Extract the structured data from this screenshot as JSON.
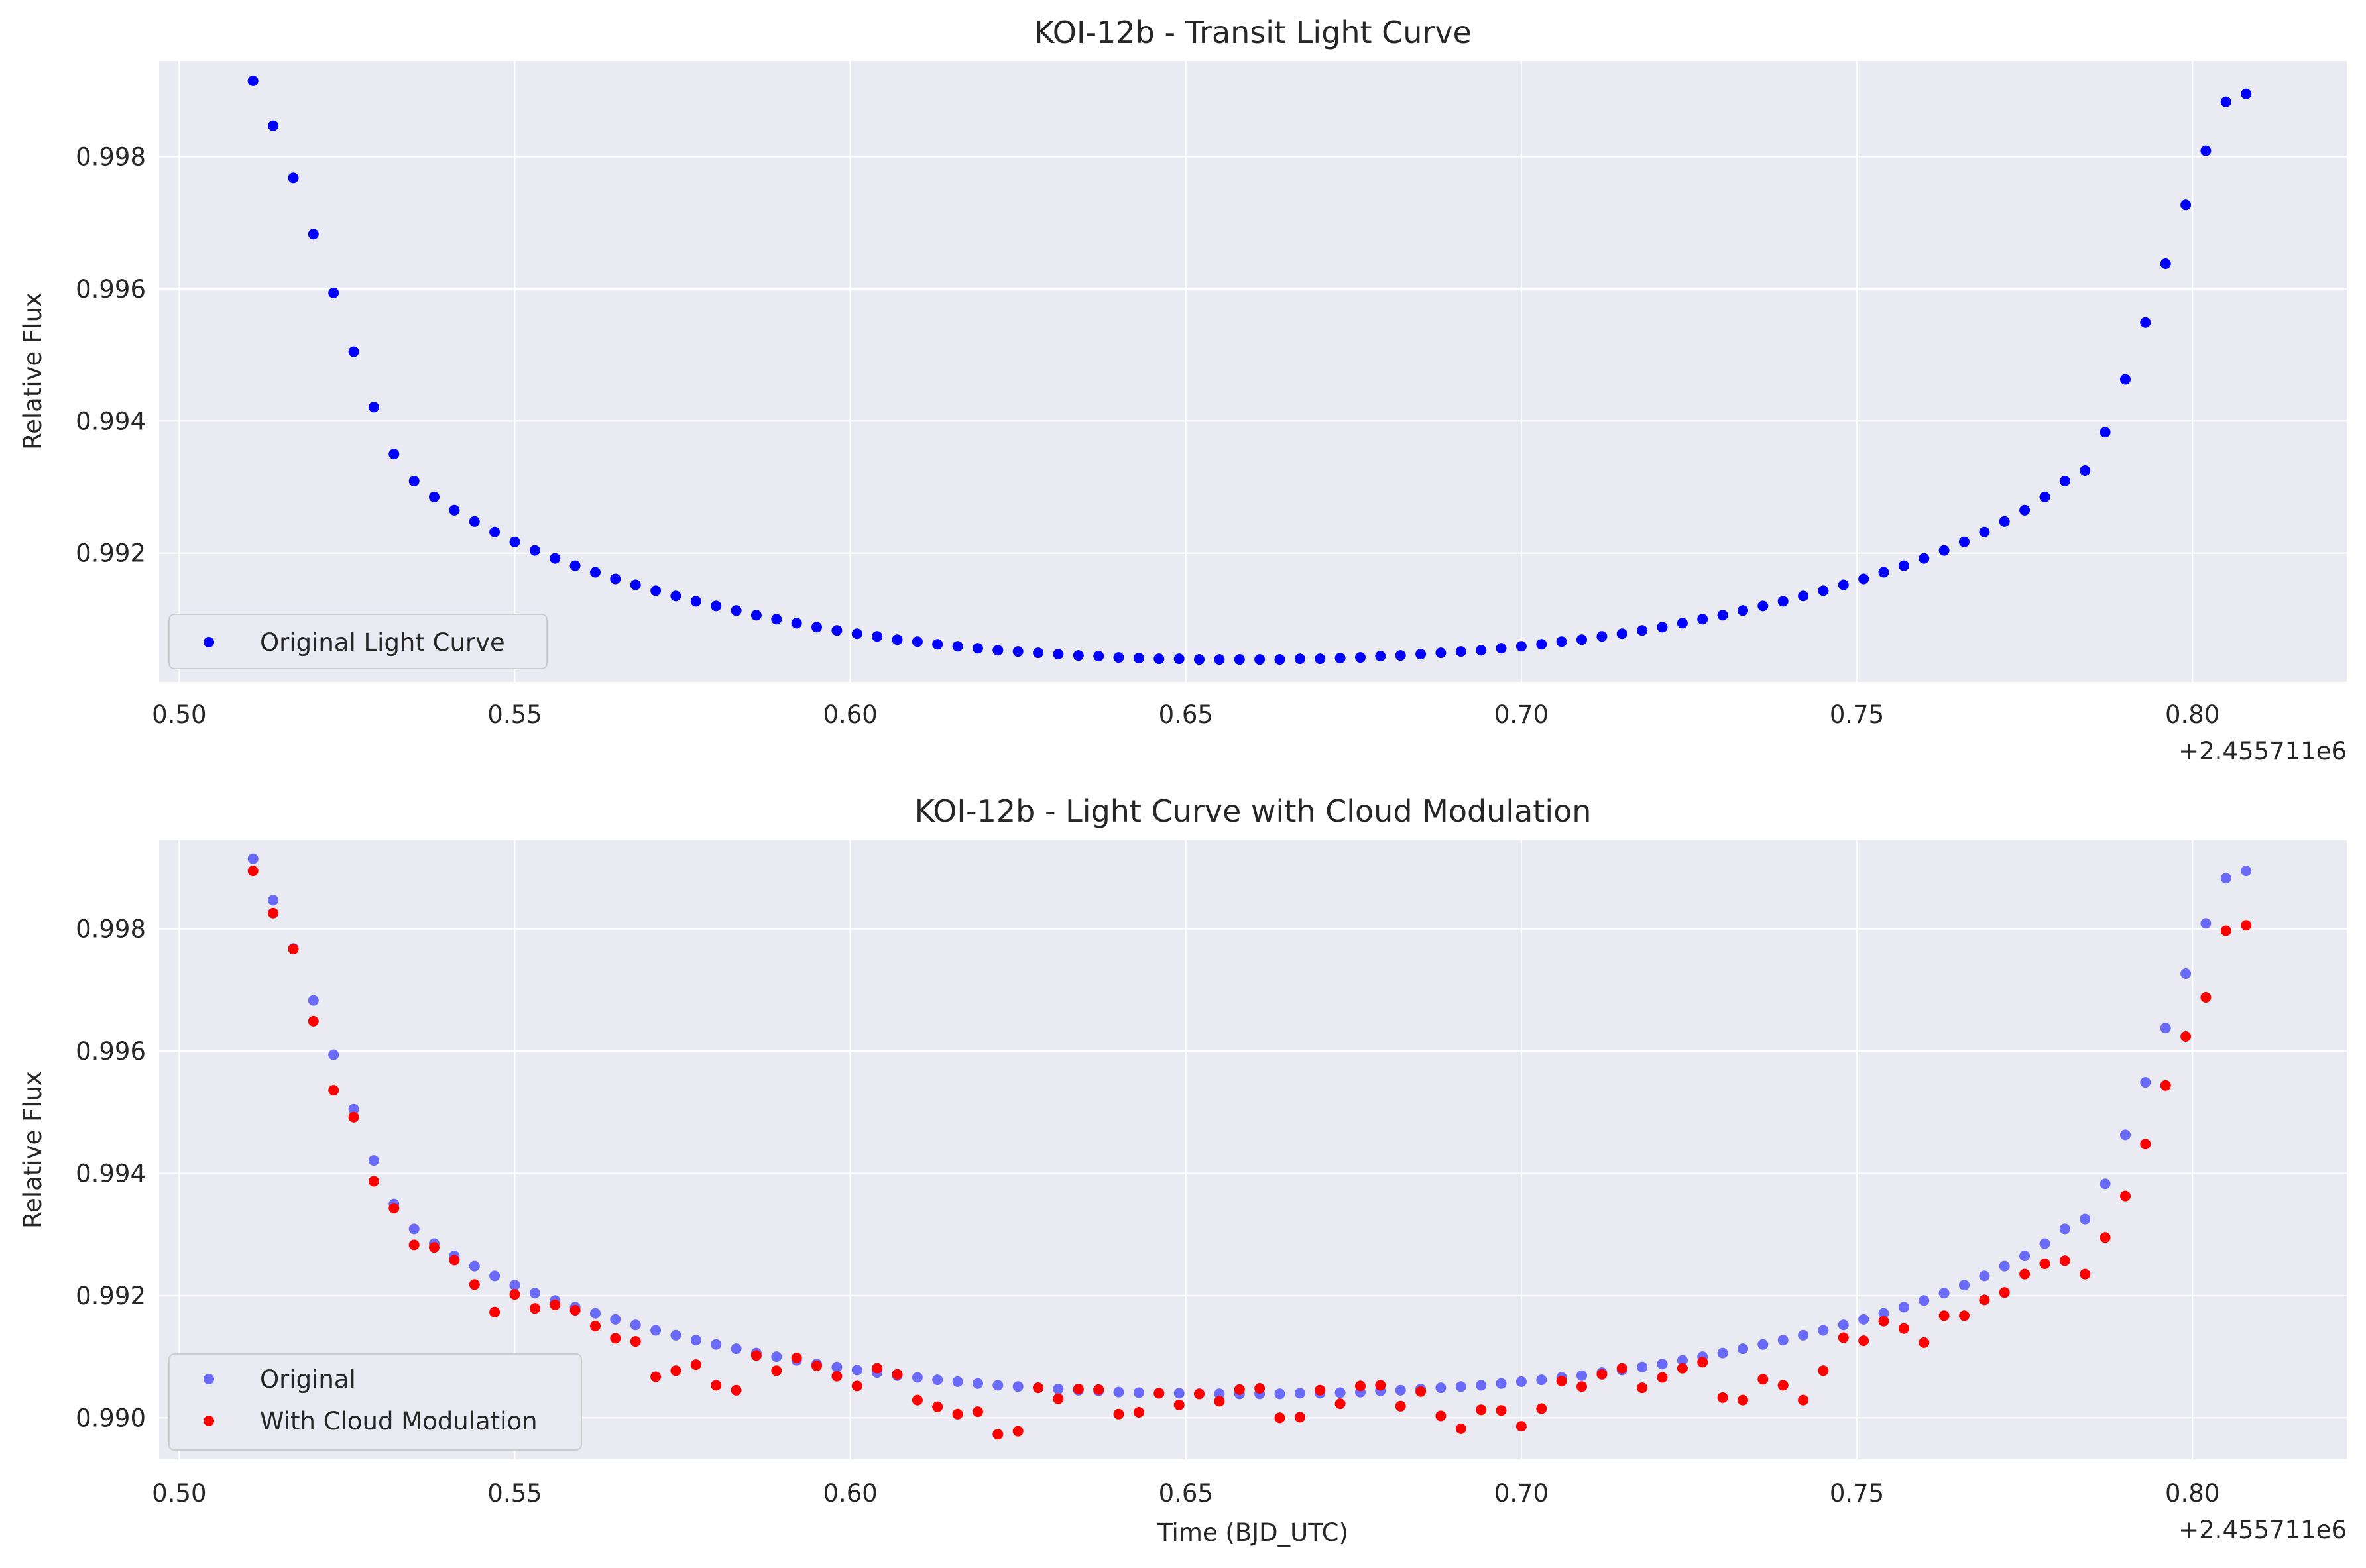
{
  "chart_data": [
    {
      "type": "scatter",
      "title": "KOI-12b - Transit Light Curve",
      "xlabel": "",
      "ylabel": "Relative Flux",
      "x_offset_label": "+2.455711e6",
      "xlim": [
        0.497,
        0.823
      ],
      "ylim": [
        0.99005,
        0.99945
      ],
      "xticks": [
        0.5,
        0.55,
        0.6,
        0.65,
        0.7,
        0.75,
        0.8
      ],
      "xtick_labels": [
        "0.50",
        "0.55",
        "0.60",
        "0.65",
        "0.70",
        "0.75",
        "0.80"
      ],
      "yticks": [
        0.992,
        0.994,
        0.996,
        0.998
      ],
      "ytick_labels": [
        "0.992",
        "0.994",
        "0.996",
        "0.998"
      ],
      "grid": true,
      "legend_position": "lower-left",
      "series": [
        {
          "name": "Original Light Curve",
          "color": "#0000ff",
          "opacity": 1.0,
          "x": [
            0.511,
            0.514,
            0.517,
            0.52,
            0.523,
            0.526,
            0.529,
            0.532,
            0.535,
            0.538,
            0.541,
            0.544,
            0.547,
            0.55,
            0.553,
            0.556,
            0.559,
            0.562,
            0.565,
            0.568,
            0.571,
            0.574,
            0.577,
            0.58,
            0.583,
            0.586,
            0.589,
            0.592,
            0.595,
            0.598,
            0.601,
            0.604,
            0.607,
            0.61,
            0.613,
            0.616,
            0.619,
            0.622,
            0.625,
            0.628,
            0.631,
            0.634,
            0.637,
            0.64,
            0.643,
            0.646,
            0.649,
            0.652,
            0.655,
            0.658,
            0.661,
            0.664,
            0.667,
            0.67,
            0.673,
            0.676,
            0.679,
            0.682,
            0.685,
            0.688,
            0.691,
            0.694,
            0.697,
            0.7,
            0.703,
            0.706,
            0.709,
            0.712,
            0.715,
            0.718,
            0.721,
            0.724,
            0.727,
            0.73,
            0.733,
            0.736,
            0.739,
            0.742,
            0.745,
            0.748,
            0.751,
            0.754,
            0.757,
            0.76,
            0.763,
            0.766,
            0.769,
            0.772,
            0.775,
            0.778,
            0.781,
            0.784,
            0.787,
            0.79,
            0.793,
            0.796,
            0.799,
            0.802,
            0.805,
            0.808
          ],
          "y": [
            0.99915,
            0.99847,
            0.99768,
            0.99683,
            0.99594,
            0.99505,
            0.99421,
            0.9935,
            0.99309,
            0.99285,
            0.99265,
            0.99248,
            0.99232,
            0.99217,
            0.99204,
            0.99192,
            0.99181,
            0.99171,
            0.99161,
            0.99152,
            0.99143,
            0.99135,
            0.99127,
            0.9912,
            0.99113,
            0.99106,
            0.991,
            0.99094,
            0.99088,
            0.99083,
            0.99078,
            0.99074,
            0.99069,
            0.99066,
            0.99062,
            0.99059,
            0.99056,
            0.99053,
            0.99051,
            0.99049,
            0.99047,
            0.99045,
            0.99044,
            0.99042,
            0.99041,
            0.9904,
            0.9904,
            0.99039,
            0.99039,
            0.99039,
            0.99039,
            0.99039,
            0.9904,
            0.9904,
            0.99041,
            0.99042,
            0.99044,
            0.99045,
            0.99047,
            0.99049,
            0.99051,
            0.99053,
            0.99056,
            0.99059,
            0.99062,
            0.99066,
            0.99069,
            0.99074,
            0.99078,
            0.99083,
            0.99088,
            0.99094,
            0.991,
            0.99106,
            0.99113,
            0.9912,
            0.99127,
            0.99135,
            0.99143,
            0.99152,
            0.99161,
            0.99171,
            0.99181,
            0.99192,
            0.99204,
            0.99217,
            0.99232,
            0.99248,
            0.99265,
            0.99285,
            0.99309,
            0.99325,
            0.99383,
            0.99463,
            0.99549,
            0.99638,
            0.99727,
            0.99809,
            0.99883,
            0.99895
          ]
        }
      ]
    },
    {
      "type": "scatter",
      "title": "KOI-12b - Light Curve with Cloud Modulation",
      "xlabel": "Time (BJD_UTC)",
      "ylabel": "Relative Flux",
      "x_offset_label": "+2.455711e6",
      "xlim": [
        0.497,
        0.823
      ],
      "ylim": [
        0.98932,
        0.99945
      ],
      "xticks": [
        0.5,
        0.55,
        0.6,
        0.65,
        0.7,
        0.75,
        0.8
      ],
      "xtick_labels": [
        "0.50",
        "0.55",
        "0.60",
        "0.65",
        "0.70",
        "0.75",
        "0.80"
      ],
      "yticks": [
        0.99,
        0.992,
        0.994,
        0.996,
        0.998
      ],
      "ytick_labels": [
        "0.990",
        "0.992",
        "0.994",
        "0.996",
        "0.998"
      ],
      "grid": true,
      "legend_position": "lower-left",
      "series": [
        {
          "name": "Original",
          "color": "#0000ff",
          "opacity": 0.55,
          "x": [
            0.511,
            0.514,
            0.517,
            0.52,
            0.523,
            0.526,
            0.529,
            0.532,
            0.535,
            0.538,
            0.541,
            0.544,
            0.547,
            0.55,
            0.553,
            0.556,
            0.559,
            0.562,
            0.565,
            0.568,
            0.571,
            0.574,
            0.577,
            0.58,
            0.583,
            0.586,
            0.589,
            0.592,
            0.595,
            0.598,
            0.601,
            0.604,
            0.607,
            0.61,
            0.613,
            0.616,
            0.619,
            0.622,
            0.625,
            0.628,
            0.631,
            0.634,
            0.637,
            0.64,
            0.643,
            0.646,
            0.649,
            0.652,
            0.655,
            0.658,
            0.661,
            0.664,
            0.667,
            0.67,
            0.673,
            0.676,
            0.679,
            0.682,
            0.685,
            0.688,
            0.691,
            0.694,
            0.697,
            0.7,
            0.703,
            0.706,
            0.709,
            0.712,
            0.715,
            0.718,
            0.721,
            0.724,
            0.727,
            0.73,
            0.733,
            0.736,
            0.739,
            0.742,
            0.745,
            0.748,
            0.751,
            0.754,
            0.757,
            0.76,
            0.763,
            0.766,
            0.769,
            0.772,
            0.775,
            0.778,
            0.781,
            0.784,
            0.787,
            0.79,
            0.793,
            0.796,
            0.799,
            0.802,
            0.805,
            0.808
          ],
          "y": [
            0.99915,
            0.99847,
            0.99768,
            0.99683,
            0.99594,
            0.99505,
            0.99421,
            0.9935,
            0.99309,
            0.99285,
            0.99265,
            0.99248,
            0.99232,
            0.99217,
            0.99204,
            0.99192,
            0.99181,
            0.99171,
            0.99161,
            0.99152,
            0.99143,
            0.99135,
            0.99127,
            0.9912,
            0.99113,
            0.99106,
            0.991,
            0.99094,
            0.99088,
            0.99083,
            0.99078,
            0.99074,
            0.99069,
            0.99066,
            0.99062,
            0.99059,
            0.99056,
            0.99053,
            0.99051,
            0.99049,
            0.99047,
            0.99045,
            0.99044,
            0.99042,
            0.99041,
            0.9904,
            0.9904,
            0.99039,
            0.99039,
            0.99039,
            0.99039,
            0.99039,
            0.9904,
            0.9904,
            0.99041,
            0.99042,
            0.99044,
            0.99045,
            0.99047,
            0.99049,
            0.99051,
            0.99053,
            0.99056,
            0.99059,
            0.99062,
            0.99066,
            0.99069,
            0.99074,
            0.99078,
            0.99083,
            0.99088,
            0.99094,
            0.991,
            0.99106,
            0.99113,
            0.9912,
            0.99127,
            0.99135,
            0.99143,
            0.99152,
            0.99161,
            0.99171,
            0.99181,
            0.99192,
            0.99204,
            0.99217,
            0.99232,
            0.99248,
            0.99265,
            0.99285,
            0.99309,
            0.99325,
            0.99383,
            0.99463,
            0.99549,
            0.99638,
            0.99727,
            0.99809,
            0.99883,
            0.99895
          ]
        },
        {
          "name": "With Cloud Modulation",
          "color": "#ff0000",
          "opacity": 1.0,
          "x": [
            0.511,
            0.514,
            0.517,
            0.52,
            0.523,
            0.526,
            0.529,
            0.532,
            0.535,
            0.538,
            0.541,
            0.544,
            0.547,
            0.55,
            0.553,
            0.556,
            0.559,
            0.562,
            0.565,
            0.568,
            0.571,
            0.574,
            0.577,
            0.58,
            0.583,
            0.586,
            0.589,
            0.592,
            0.595,
            0.598,
            0.601,
            0.604,
            0.607,
            0.61,
            0.613,
            0.616,
            0.619,
            0.622,
            0.625,
            0.628,
            0.631,
            0.634,
            0.637,
            0.64,
            0.643,
            0.646,
            0.649,
            0.652,
            0.655,
            0.658,
            0.661,
            0.664,
            0.667,
            0.67,
            0.673,
            0.676,
            0.679,
            0.682,
            0.685,
            0.688,
            0.691,
            0.694,
            0.697,
            0.7,
            0.703,
            0.706,
            0.709,
            0.712,
            0.715,
            0.718,
            0.721,
            0.724,
            0.727,
            0.73,
            0.733,
            0.736,
            0.739,
            0.742,
            0.745,
            0.748,
            0.751,
            0.754,
            0.757,
            0.76,
            0.763,
            0.766,
            0.769,
            0.772,
            0.775,
            0.778,
            0.781,
            0.784,
            0.787,
            0.79,
            0.793,
            0.796,
            0.799,
            0.802,
            0.805,
            0.808
          ],
          "y": [
            0.99895,
            0.99826,
            0.99767,
            0.99649,
            0.99536,
            0.99492,
            0.99387,
            0.99343,
            0.99283,
            0.99279,
            0.99258,
            0.99218,
            0.99173,
            0.99202,
            0.99179,
            0.99185,
            0.99176,
            0.9915,
            0.9913,
            0.99125,
            0.99067,
            0.99077,
            0.99087,
            0.99053,
            0.99045,
            0.99102,
            0.99077,
            0.99098,
            0.99085,
            0.99068,
            0.99052,
            0.99081,
            0.99071,
            0.99029,
            0.99018,
            0.99006,
            0.9901,
            0.98973,
            0.98978,
            0.99049,
            0.99031,
            0.99047,
            0.99046,
            0.99006,
            0.99009,
            0.9904,
            0.99021,
            0.99039,
            0.99027,
            0.99046,
            0.99048,
            0.99,
            0.99001,
            0.99045,
            0.99023,
            0.99052,
            0.99053,
            0.99019,
            0.99043,
            0.99003,
            0.98982,
            0.99013,
            0.99012,
            0.98986,
            0.99015,
            0.9906,
            0.99051,
            0.99071,
            0.99081,
            0.99049,
            0.99066,
            0.99081,
            0.99091,
            0.99033,
            0.99029,
            0.99063,
            0.99053,
            0.99029,
            0.99077,
            0.99131,
            0.99126,
            0.99158,
            0.99146,
            0.99123,
            0.99167,
            0.99167,
            0.99193,
            0.99205,
            0.99235,
            0.99252,
            0.99257,
            0.99235,
            0.99295,
            0.99363,
            0.99448,
            0.99544,
            0.99624,
            0.99688,
            0.99797,
            0.99806
          ]
        }
      ]
    }
  ]
}
